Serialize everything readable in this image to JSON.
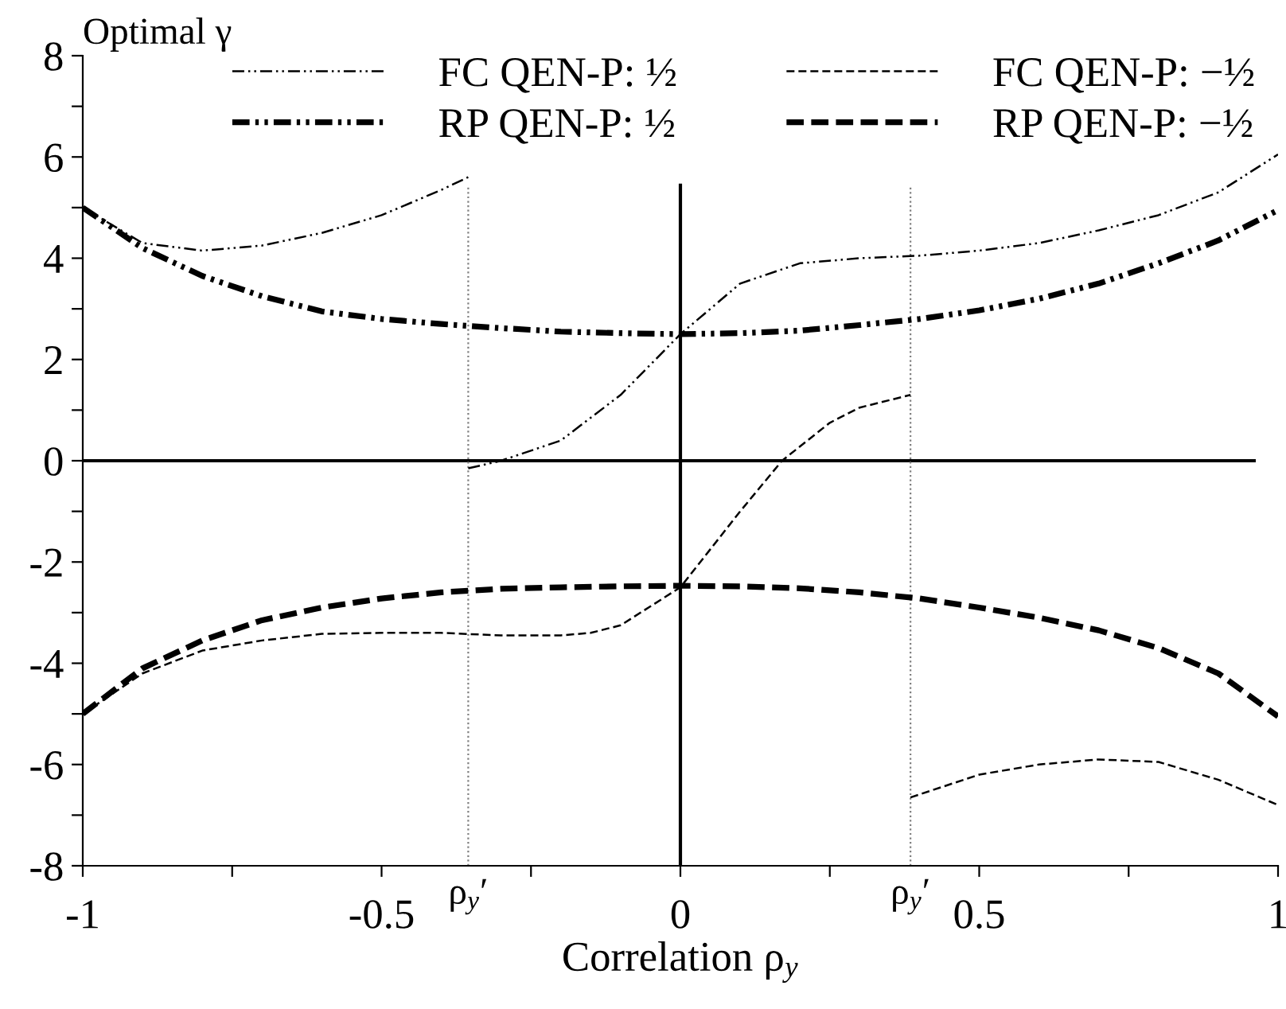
{
  "chart_data": {
    "type": "line",
    "xlabel": "Correlation ρ$_{y}$",
    "ylabel": "Optimal γ",
    "xlim": [
      -1,
      1
    ],
    "ylim": [
      -8,
      8
    ],
    "xticks": [
      -1,
      {
        "value": -0.75,
        "label": null
      },
      -0.5,
      {
        "value": -0.25,
        "label": null
      },
      0,
      {
        "value": 0.25,
        "label": null
      },
      0.5,
      {
        "value": 0.75,
        "label": null
      },
      1
    ],
    "yticks": [
      -8,
      {
        "value": -7,
        "label": null
      },
      -6,
      {
        "value": -5,
        "label": null
      },
      -4,
      {
        "value": -3,
        "label": null
      },
      -2,
      {
        "value": -1,
        "label": null
      },
      0,
      {
        "value": 1,
        "label": null
      },
      2,
      {
        "value": 3,
        "label": null
      },
      4,
      {
        "value": 5,
        "label": null
      },
      6,
      {
        "value": 7,
        "label": null
      },
      8
    ],
    "grid": false,
    "legend": "top",
    "marker": "none",
    "series": [
      {
        "name": "FC QEN-P: ½",
        "color": "#000000",
        "line_style": "dashdot",
        "x": [
          -1,
          -0.9,
          -0.8,
          -0.7,
          -0.6,
          -0.5,
          -0.4,
          -0.355,
          -0.355,
          -0.3,
          -0.2,
          -0.1,
          0,
          0.1,
          0.2,
          0.3,
          0.4,
          0.5,
          0.6,
          0.7,
          0.8,
          0.9,
          1
        ],
        "values": [
          5,
          4.3,
          4.15,
          4.25,
          4.5,
          4.85,
          5.35,
          5.6,
          -0.15,
          0,
          0.4,
          1.3,
          2.5,
          3.5,
          3.9,
          4.0,
          4.05,
          4.15,
          4.3,
          4.55,
          4.85,
          5.3,
          6.05
        ]
      },
      {
        "name": "RP QEN-P: ½",
        "color": "#000000",
        "line_style": "dashdot",
        "x": [
          -1,
          -0.9,
          -0.8,
          -0.7,
          -0.6,
          -0.5,
          -0.4,
          -0.3,
          -0.2,
          -0.1,
          0,
          0.1,
          0.2,
          0.3,
          0.4,
          0.5,
          0.6,
          0.7,
          0.8,
          0.9,
          1
        ],
        "values": [
          5,
          4.2,
          3.65,
          3.25,
          2.95,
          2.8,
          2.7,
          2.62,
          2.55,
          2.52,
          2.5,
          2.52,
          2.57,
          2.68,
          2.8,
          2.97,
          3.2,
          3.5,
          3.9,
          4.35,
          4.95
        ]
      },
      {
        "name": "FC QEN-P: −½",
        "color": "#000000",
        "line_style": "dashed",
        "x": [
          -1,
          -0.9,
          -0.8,
          -0.7,
          -0.6,
          -0.5,
          -0.4,
          -0.3,
          -0.2,
          -0.15,
          -0.1,
          0,
          0.1,
          0.17,
          0.25,
          0.3,
          0.385,
          0.385,
          0.5,
          0.6,
          0.7,
          0.8,
          0.9,
          1
        ],
        "values": [
          -5,
          -4.2,
          -3.75,
          -3.55,
          -3.42,
          -3.4,
          -3.4,
          -3.45,
          -3.45,
          -3.4,
          -3.25,
          -2.5,
          -1.0,
          0,
          0.75,
          1.05,
          1.3,
          -6.65,
          -6.2,
          -6.0,
          -5.9,
          -5.95,
          -6.3,
          -6.8
        ]
      },
      {
        "name": "RP QEN-P: −½",
        "color": "#000000",
        "line_style": "dashed",
        "x": [
          -1,
          -0.9,
          -0.8,
          -0.7,
          -0.6,
          -0.5,
          -0.4,
          -0.3,
          -0.2,
          -0.1,
          0,
          0.1,
          0.2,
          0.3,
          0.4,
          0.5,
          0.6,
          0.7,
          0.8,
          0.9,
          1
        ],
        "values": [
          -5,
          -4.1,
          -3.55,
          -3.15,
          -2.9,
          -2.72,
          -2.6,
          -2.53,
          -2.5,
          -2.48,
          -2.47,
          -2.48,
          -2.52,
          -2.6,
          -2.72,
          -2.9,
          -3.1,
          -3.35,
          -3.7,
          -4.2,
          -5.05
        ]
      }
    ],
    "ref_lines": [
      {
        "axis": "y",
        "value": 0,
        "color": "#000000",
        "line_style": "solid"
      },
      {
        "axis": "x",
        "value": 0,
        "color": "#000000",
        "line_style": "solid"
      },
      {
        "axis": "x",
        "value": -0.355,
        "color": "#808080",
        "line_style": "dotted"
      },
      {
        "axis": "x",
        "value": 0.385,
        "color": "#808080",
        "line_style": "dotted"
      }
    ],
    "annotations": [
      {
        "text": "ρ$_{y}$′",
        "x": -0.355,
        "y": -8
      },
      {
        "text": "ρ$_{y}$′",
        "x": 0.385,
        "y": -8
      }
    ]
  }
}
